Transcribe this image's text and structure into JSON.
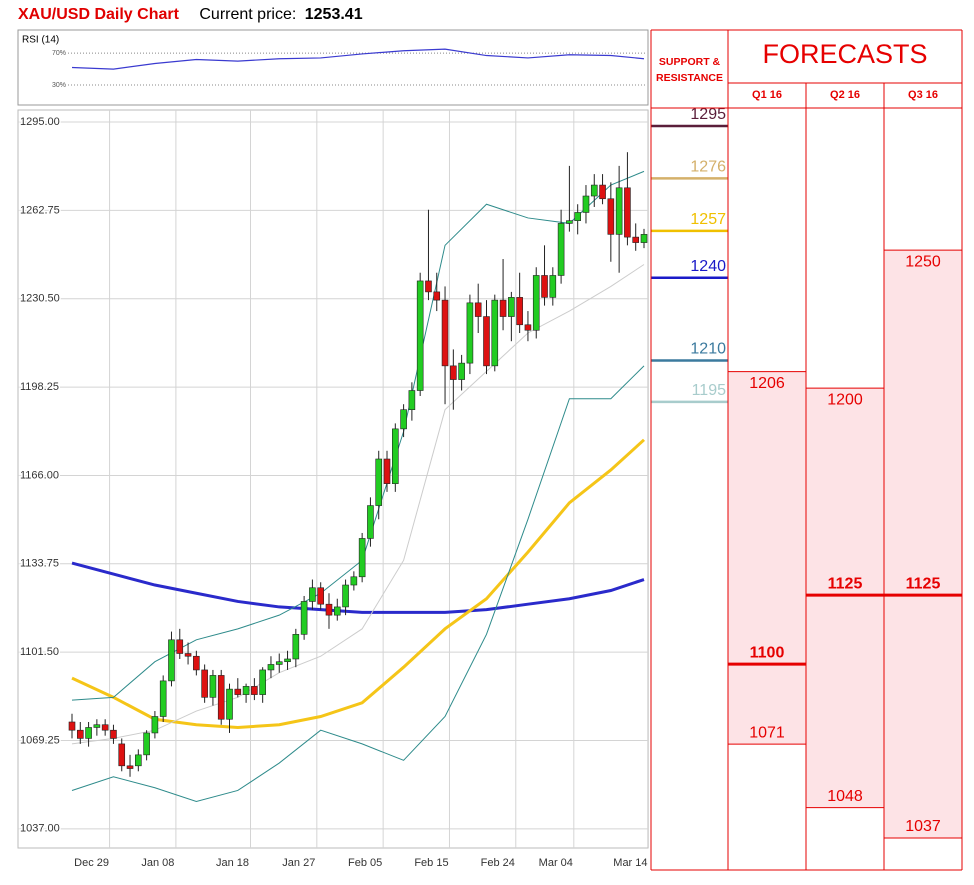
{
  "header": {
    "title": "XAU/USD Daily Chart",
    "price_label": "Current price:",
    "price": 1253.41
  },
  "chart_data": [
    {
      "type": "candlestick",
      "categories": [
        null,
        null,
        "Dec 29",
        null,
        null,
        null,
        null,
        null,
        null,
        null,
        "Jan 08",
        null,
        null,
        null,
        null,
        null,
        null,
        null,
        null,
        "Jan 18",
        null,
        null,
        null,
        null,
        null,
        null,
        null,
        "Jan 27",
        null,
        null,
        null,
        null,
        null,
        null,
        null,
        "Feb 05",
        null,
        null,
        null,
        null,
        null,
        null,
        null,
        "Feb 15",
        null,
        null,
        null,
        null,
        null,
        null,
        null,
        "Feb 24",
        null,
        null,
        null,
        null,
        null,
        null,
        "Mar 04",
        null,
        null,
        null,
        null,
        null,
        null,
        null,
        null,
        "Mar 14",
        null,
        null
      ],
      "ohlc": [
        [
          1076,
          1079,
          1070,
          1073
        ],
        [
          1073,
          1076,
          1068,
          1070
        ],
        [
          1070,
          1076,
          1067,
          1074
        ],
        [
          1074,
          1077,
          1071,
          1075
        ],
        [
          1075,
          1077,
          1071,
          1073
        ],
        [
          1073,
          1075,
          1068,
          1070
        ],
        [
          1068,
          1070,
          1058,
          1060
        ],
        [
          1060,
          1064,
          1056,
          1059
        ],
        [
          1060,
          1066,
          1058,
          1064
        ],
        [
          1064,
          1073,
          1062,
          1072
        ],
        [
          1072,
          1080,
          1070,
          1078
        ],
        [
          1078,
          1093,
          1076,
          1091
        ],
        [
          1091,
          1109,
          1089,
          1106
        ],
        [
          1106,
          1110,
          1099,
          1101
        ],
        [
          1101,
          1105,
          1097,
          1100
        ],
        [
          1100,
          1102,
          1093,
          1095
        ],
        [
          1095,
          1097,
          1083,
          1085
        ],
        [
          1085,
          1095,
          1082,
          1093
        ],
        [
          1093,
          1095,
          1075,
          1077
        ],
        [
          1077,
          1090,
          1072,
          1088
        ],
        [
          1088,
          1092,
          1085,
          1086
        ],
        [
          1086,
          1090,
          1083,
          1089
        ],
        [
          1089,
          1092,
          1084,
          1086
        ],
        [
          1086,
          1096,
          1083,
          1095
        ],
        [
          1095,
          1100,
          1092,
          1097
        ],
        [
          1097,
          1101,
          1094,
          1098
        ],
        [
          1098,
          1102,
          1095,
          1099
        ],
        [
          1099,
          1110,
          1096,
          1108
        ],
        [
          1108,
          1122,
          1106,
          1120
        ],
        [
          1120,
          1128,
          1117,
          1125
        ],
        [
          1125,
          1127,
          1117,
          1119
        ],
        [
          1119,
          1123,
          1110,
          1115
        ],
        [
          1115,
          1121,
          1113,
          1118
        ],
        [
          1118,
          1128,
          1115,
          1126
        ],
        [
          1126,
          1131,
          1124,
          1129
        ],
        [
          1129,
          1145,
          1127,
          1143
        ],
        [
          1143,
          1158,
          1140,
          1155
        ],
        [
          1155,
          1175,
          1150,
          1172
        ],
        [
          1172,
          1175,
          1160,
          1163
        ],
        [
          1163,
          1185,
          1160,
          1183
        ],
        [
          1183,
          1192,
          1180,
          1190
        ],
        [
          1190,
          1200,
          1186,
          1197
        ],
        [
          1197,
          1240,
          1195,
          1237
        ],
        [
          1237,
          1263,
          1230,
          1233
        ],
        [
          1233,
          1240,
          1226,
          1230
        ],
        [
          1230,
          1235,
          1192,
          1206
        ],
        [
          1206,
          1212,
          1190,
          1201
        ],
        [
          1201,
          1210,
          1197,
          1207
        ],
        [
          1207,
          1232,
          1203,
          1229
        ],
        [
          1229,
          1236,
          1218,
          1224
        ],
        [
          1224,
          1230,
          1203,
          1206
        ],
        [
          1206,
          1232,
          1204,
          1230
        ],
        [
          1230,
          1245,
          1219,
          1224
        ],
        [
          1224,
          1233,
          1215,
          1231
        ],
        [
          1231,
          1240,
          1218,
          1221
        ],
        [
          1221,
          1226,
          1215,
          1219
        ],
        [
          1219,
          1242,
          1216,
          1239
        ],
        [
          1239,
          1250,
          1228,
          1231
        ],
        [
          1231,
          1242,
          1228,
          1239
        ],
        [
          1239,
          1263,
          1236,
          1258
        ],
        [
          1258,
          1279,
          1255,
          1259
        ],
        [
          1259,
          1265,
          1254,
          1262
        ],
        [
          1262,
          1272,
          1258,
          1268
        ],
        [
          1268,
          1276,
          1264,
          1272
        ],
        [
          1272,
          1276,
          1265,
          1267
        ],
        [
          1267,
          1273,
          1244,
          1254
        ],
        [
          1254,
          1279,
          1240,
          1271
        ],
        [
          1271,
          1284,
          1250,
          1253
        ],
        [
          1253,
          1258,
          1248,
          1251
        ],
        [
          1251,
          1256,
          1249,
          1254
        ]
      ],
      "up_color": "#22cc22",
      "down_color": "#dd1111",
      "x": [
        0,
        5,
        10,
        15,
        20,
        25,
        30,
        35,
        40,
        45,
        50,
        55,
        60,
        65,
        69
      ],
      "series": [
        {
          "color": "#2a2acb",
          "width": 3,
          "values": [
            1134,
            1130,
            1126,
            1123,
            1120,
            1118,
            1117,
            1116,
            1116,
            1116,
            1117,
            1119,
            1121,
            1124,
            1128
          ]
        },
        {
          "color": "#f5c518",
          "width": 3,
          "values": [
            1092,
            1085,
            1077,
            1075,
            1074,
            1075,
            1078,
            1083,
            1096,
            1110,
            1121,
            1138,
            1156,
            1168,
            1179
          ]
        },
        {
          "color": "#2e8b8b",
          "width": 1,
          "values": [
            1084,
            1085,
            1098,
            1106,
            1110,
            1115,
            1123,
            1135,
            1182,
            1250,
            1265,
            1260,
            1258,
            1272,
            1277
          ]
        },
        {
          "color": "#2e8b8b",
          "width": 1,
          "values": [
            1051,
            1056,
            1052,
            1047,
            1051,
            1061,
            1073,
            1068,
            1062,
            1078,
            1108,
            1150,
            1194,
            1194,
            1206
          ]
        },
        {
          "color": "#cccccc",
          "width": 1,
          "values": [
            1068,
            1070,
            1073,
            1080,
            1085,
            1094,
            1100,
            1110,
            1135,
            1190,
            1204,
            1218,
            1226,
            1235,
            1243
          ]
        }
      ],
      "ylim": [
        1030,
        1299.4
      ],
      "yticks": [
        {
          "value": 1295,
          "label": "1295.00"
        },
        {
          "value": 1262.75,
          "label": "1262.75"
        },
        {
          "value": 1230.5,
          "label": "1230.50"
        },
        {
          "value": 1198.25,
          "label": "1198.25"
        },
        {
          "value": 1166,
          "label": "1166.00"
        },
        {
          "value": 1133.75,
          "label": "1133.75"
        },
        {
          "value": 1101.5,
          "label": "1101.50"
        },
        {
          "value": 1069.25,
          "label": "1069.25"
        },
        {
          "value": 1037,
          "label": "1037.00"
        }
      ],
      "grid": true
    },
    {
      "type": "line",
      "title": "RSI (14)",
      "color": "#3a3ad0",
      "x": [
        0,
        5,
        10,
        15,
        20,
        25,
        30,
        35,
        40,
        45,
        50,
        55,
        60,
        65,
        69
      ],
      "values": [
        52,
        50,
        57,
        62,
        60,
        63,
        64,
        69,
        73,
        75,
        67,
        64,
        68,
        67,
        63
      ],
      "ylim": [
        5,
        99
      ],
      "yticks": [
        {
          "value": 70,
          "label": "70%"
        },
        {
          "value": 30,
          "label": "30%"
        }
      ]
    },
    {
      "type": "forecast",
      "title": "FORECASTS",
      "ylim": [
        1025.4,
        1301.5
      ],
      "support_resistance": {
        "title": [
          "SUPPORT &",
          "RESISTANCE"
        ],
        "levels": [
          1295,
          1276,
          1257,
          1240,
          1210,
          1195
        ],
        "colors": [
          "#5a1e3a",
          "#d4b06a",
          "#f0c000",
          "#1a1ac8",
          "#3b7a9e",
          "#a8cccc"
        ]
      },
      "categories": [
        "Q1 16",
        "Q2 16",
        "Q3 16"
      ],
      "ranges": [
        {
          "high": 1206,
          "target": 1100,
          "low": 1071
        },
        {
          "high": 1200,
          "target": 1125,
          "low": 1048
        },
        {
          "high": 1250,
          "target": 1125,
          "low": 1037
        }
      ],
      "color": "#e60000",
      "fill": "#fde3e6"
    }
  ]
}
